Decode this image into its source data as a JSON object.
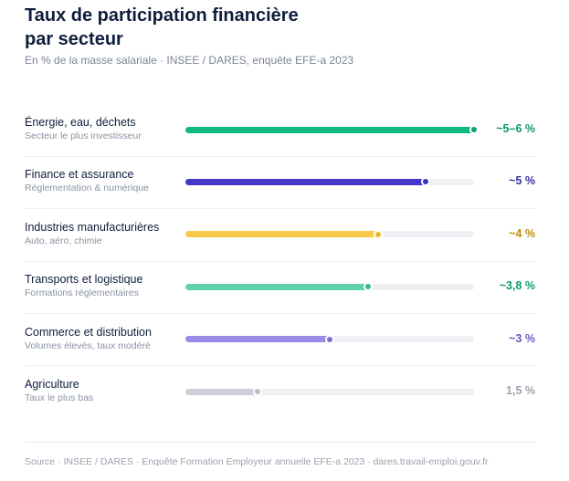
{
  "chart_data": {
    "type": "bar",
    "orientation": "horizontal",
    "title": "Taux de participation financière par secteur",
    "subtitle": "En % de la masse salariale · INSEE / DARES, enquête EFE-a 2023",
    "categories": [
      "Énergie, eau, déchets",
      "Finance et assurance",
      "Industries manufacturières",
      "Transports et logistique",
      "Commerce et distribution",
      "Agriculture"
    ],
    "descriptions": [
      "Secteur le plus investisseur",
      "Réglementation & numérique",
      "Auto, aéro, chimie",
      "Formations réglementaires",
      "Volumes élevés, taux modéré",
      "Taux le plus bas"
    ],
    "values": [
      6,
      5,
      4,
      3.8,
      3,
      1.5
    ],
    "value_labels": [
      "~5–6 %",
      "~5 %",
      "~4 %",
      "~3,8 %",
      "~3 %",
      "1,5 %"
    ],
    "colors": [
      "#10b981",
      "#4338ca",
      "#f7c948",
      "#5fcfae",
      "#9b8ae6",
      "#cdd0d7"
    ],
    "dot_colors": [
      "#0f9d6e",
      "#3b2fb8",
      "#f0b429",
      "#3cb58f",
      "#7e6bd8",
      "#b9bdc6"
    ],
    "label_colors": [
      "#0b9a6c",
      "#3730a3",
      "#c58a0b",
      "#0b9a6c",
      "#6a56c8",
      "#9ca3af"
    ],
    "xlim": [
      0,
      6
    ],
    "source": "Source · INSEE / DARES · Enquête Formation Employeur annuelle EFE-a 2023 · dares.travail-emploi.gouv.fr"
  }
}
